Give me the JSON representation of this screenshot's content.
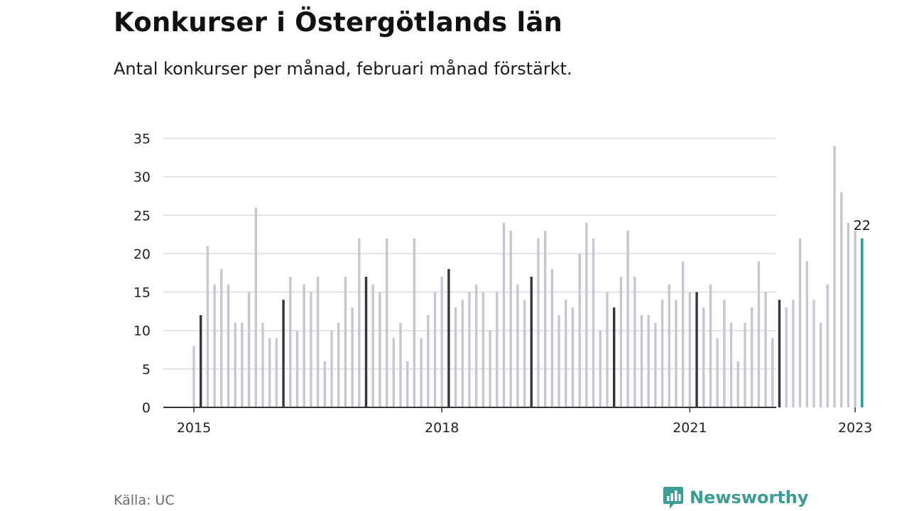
{
  "title": "Konkurser i Östergötlands län",
  "subtitle": "Antal konkurser per månad, februari månad förstärkt.",
  "source": "Källa: UC",
  "brand": {
    "name": "Newsworthy",
    "icon": "newsworthy-logo-icon"
  },
  "colors": {
    "bar": "#c6c6d0",
    "highlight": "#35353f",
    "latest": "#1b9e8f",
    "grid": "#dcdcdc",
    "axis": "#333333",
    "brand": "#3a9e94"
  },
  "chart_data": {
    "type": "bar",
    "title": "Konkurser i Östergötlands län",
    "subtitle": "Antal konkurser per månad, februari månad förstärkt.",
    "x_start": "2015-01",
    "x_end": "2023-02",
    "highlight_month": 2,
    "ylim": [
      0,
      35
    ],
    "yticks": [
      0,
      5,
      10,
      15,
      20,
      25,
      30,
      35
    ],
    "xticks": [
      "2015",
      "2018",
      "2021",
      "2023"
    ],
    "grid": true,
    "latest_label": "22",
    "series": [
      {
        "values": [
          8,
          12,
          21,
          16,
          18,
          16,
          11,
          11,
          15,
          26,
          11,
          9,
          9,
          14,
          17,
          10,
          16,
          15,
          17,
          6,
          10,
          11,
          17,
          13,
          22,
          17,
          16,
          15,
          22,
          9,
          11,
          6,
          22,
          9,
          12,
          15,
          17,
          18,
          13,
          14,
          15,
          16,
          15,
          10,
          15,
          24,
          23,
          16,
          14,
          17,
          22,
          23,
          18,
          12,
          14,
          13,
          20,
          24,
          22,
          10,
          15,
          13,
          17,
          23,
          17,
          12,
          12,
          11,
          14,
          16,
          14,
          19,
          15,
          15,
          13,
          16,
          9,
          14,
          11,
          6,
          11,
          13,
          19,
          15,
          9,
          14,
          13,
          14,
          22,
          19,
          14,
          11,
          16,
          34,
          28,
          24,
          23,
          22
        ]
      }
    ]
  }
}
